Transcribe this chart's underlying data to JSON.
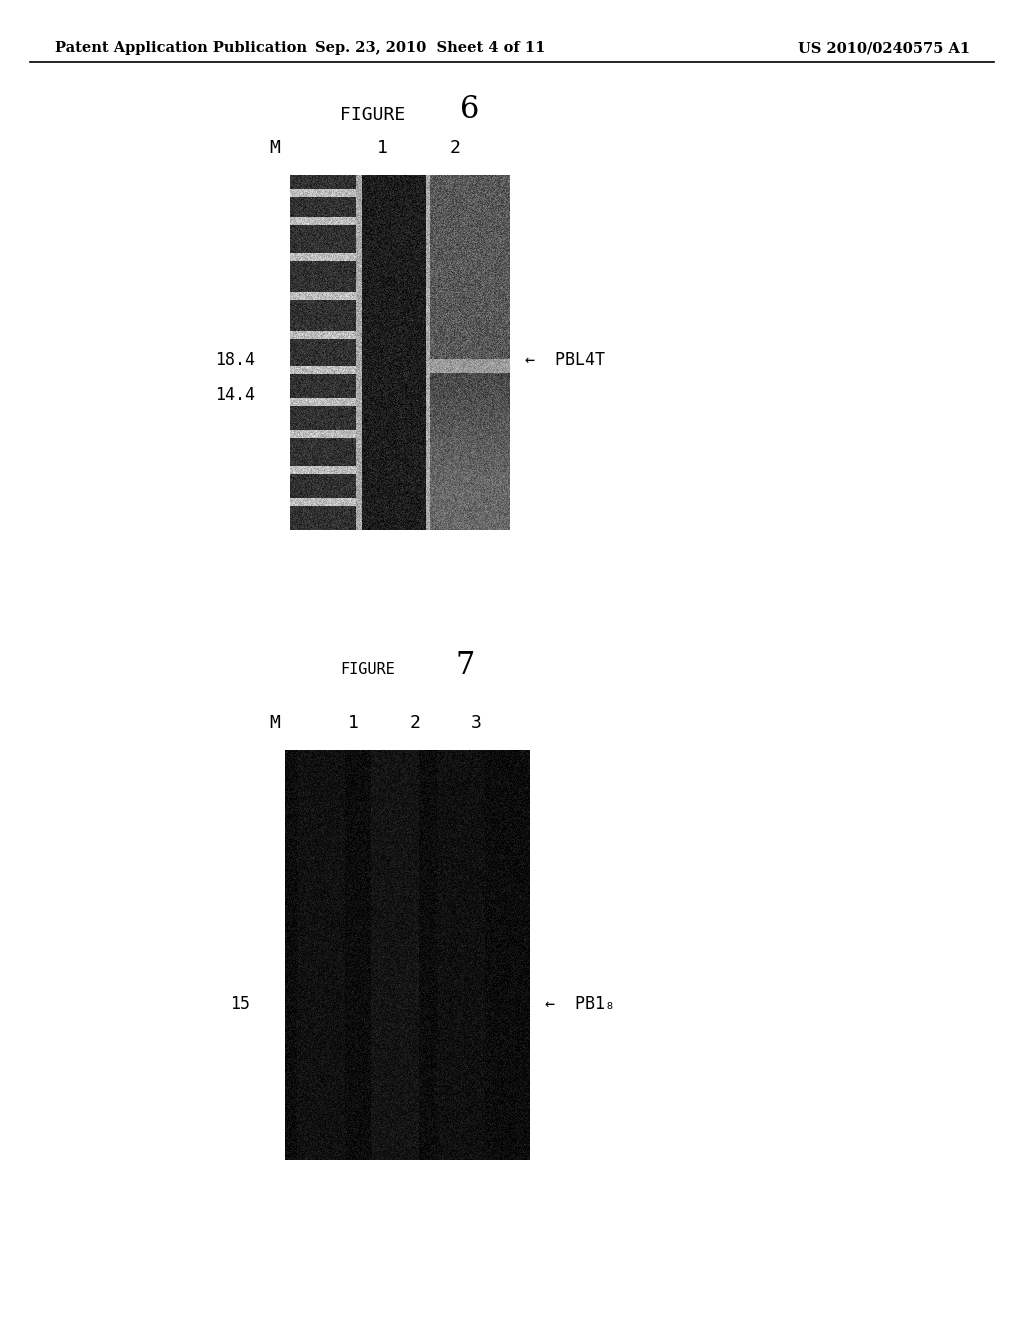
{
  "bg_color": "#ffffff",
  "header_left": "Patent Application Publication",
  "header_mid": "Sep. 23, 2010  Sheet 4 of 11",
  "header_right": "US 2010/0240575 A1",
  "fig6_title_text": "FIGURE",
  "fig6_title_num": "6",
  "fig6_lanes": [
    "M",
    "1",
    "2"
  ],
  "fig6_marker_label_184": "18.4",
  "fig6_marker_label_144": "14.4",
  "fig6_arrow_label": "←  PBL4T",
  "fig7_title_text": "FIGURE",
  "fig7_title_num": "7",
  "fig7_lanes": [
    "M",
    "1",
    "2",
    "3"
  ],
  "fig7_marker_label": "15",
  "fig7_arrow_label": "←  PB1₈"
}
